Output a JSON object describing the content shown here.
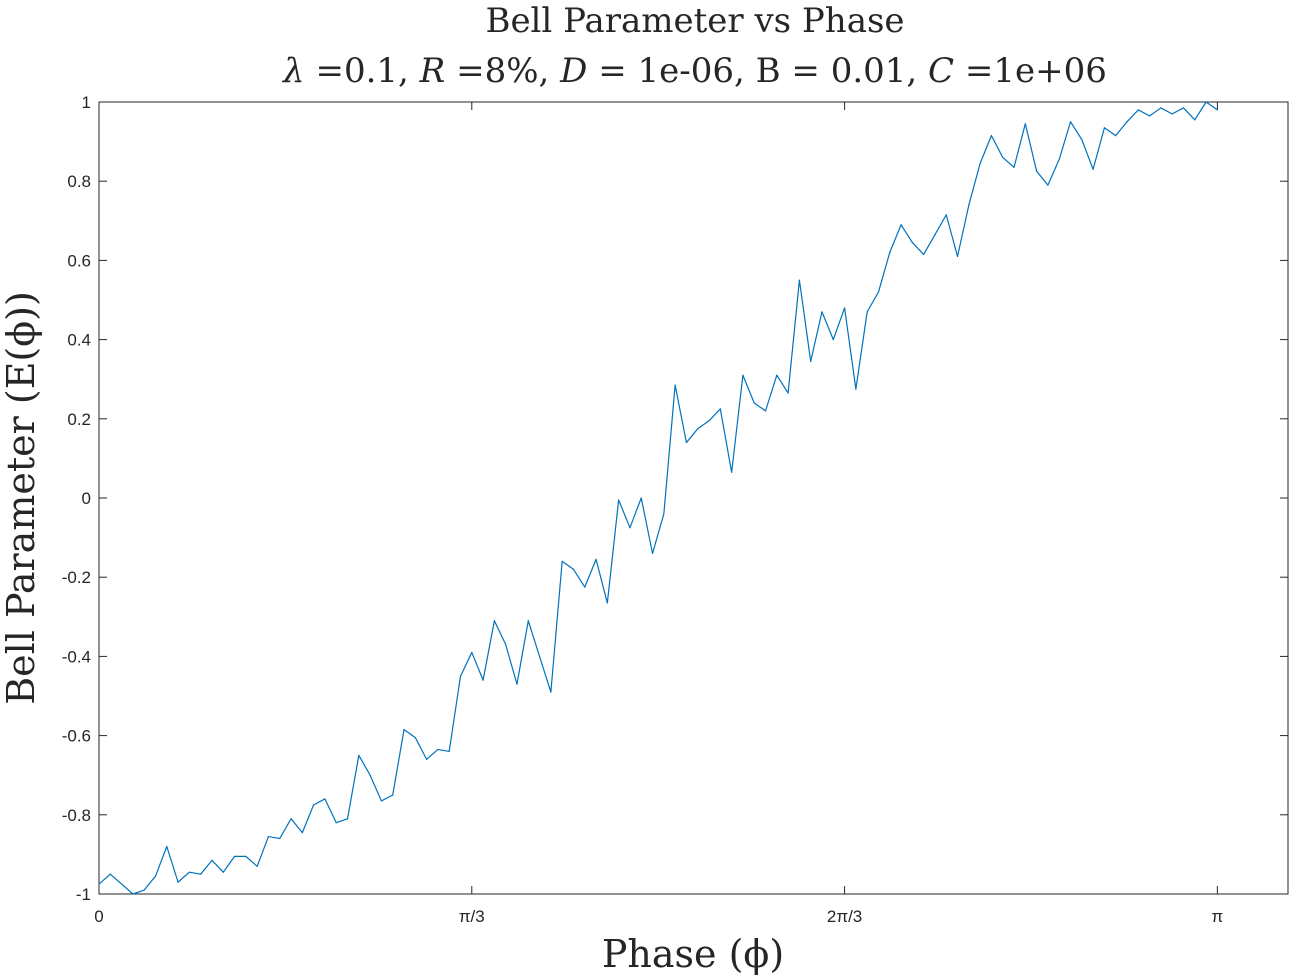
{
  "chart_data": {
    "type": "line",
    "title": "Bell Parameter vs Phase",
    "subtitle_parts": [
      {
        "text": "λ",
        "italic": true
      },
      {
        "text": " =0.1, ",
        "italic": false
      },
      {
        "text": "R",
        "italic": true
      },
      {
        "text": " =8%, ",
        "italic": false
      },
      {
        "text": "D",
        "italic": true
      },
      {
        "text": " = 1e-06, B = 0.01, ",
        "italic": false
      },
      {
        "text": "C",
        "italic": true
      },
      {
        "text": " =1e+06",
        "italic": false
      }
    ],
    "xlabel": "Phase (ϕ)",
    "ylabel": "Bell Parameter (E(ϕ))",
    "xlim": [
      0,
      3.34
    ],
    "ylim": [
      -1,
      1
    ],
    "xticks": [
      {
        "value": 0,
        "label": "0"
      },
      {
        "value": 1.0472,
        "label": "π/3"
      },
      {
        "value": 2.0944,
        "label": "2π/3"
      },
      {
        "value": 3.1416,
        "label": "π"
      }
    ],
    "yticks": [
      {
        "value": -1,
        "label": "-1"
      },
      {
        "value": -0.8,
        "label": "-0.8"
      },
      {
        "value": -0.6,
        "label": "-0.6"
      },
      {
        "value": -0.4,
        "label": "-0.4"
      },
      {
        "value": -0.2,
        "label": "-0.2"
      },
      {
        "value": 0,
        "label": "0"
      },
      {
        "value": 0.2,
        "label": "0.2"
      },
      {
        "value": 0.4,
        "label": "0.4"
      },
      {
        "value": 0.6,
        "label": "0.6"
      },
      {
        "value": 0.8,
        "label": "0.8"
      },
      {
        "value": 1,
        "label": "1"
      }
    ],
    "grid": false,
    "series": [
      {
        "color": "#0072BD",
        "x": [
          0,
          0.0317,
          0.0635,
          0.0952,
          0.1269,
          0.1587,
          0.1904,
          0.2221,
          0.2539,
          0.2856,
          0.3173,
          0.3491,
          0.3808,
          0.4125,
          0.4443,
          0.476,
          0.5077,
          0.5395,
          0.5712,
          0.6029,
          0.6347,
          0.6664,
          0.6981,
          0.7299,
          0.7616,
          0.7933,
          0.8251,
          0.8568,
          0.8885,
          0.9203,
          0.952,
          0.9837,
          1.0155,
          1.0472,
          1.0789,
          1.1107,
          1.1424,
          1.1741,
          1.2059,
          1.2376,
          1.2693,
          1.3011,
          1.3328,
          1.3645,
          1.3963,
          1.428,
          1.4597,
          1.4915,
          1.5232,
          1.5549,
          1.5867,
          1.6184,
          1.6501,
          1.6819,
          1.7136,
          1.7453,
          1.7771,
          1.8088,
          1.8405,
          1.8723,
          1.904,
          1.9357,
          1.9675,
          1.9992,
          2.0309,
          2.0627,
          2.0944,
          2.1261,
          2.1579,
          2.1896,
          2.2213,
          2.2531,
          2.2848,
          2.3165,
          2.3483,
          2.38,
          2.4117,
          2.4435,
          2.4752,
          2.5069,
          2.5387,
          2.5704,
          2.6021,
          2.6339,
          2.6656,
          2.6973,
          2.7291,
          2.7608,
          2.7925,
          2.8243,
          2.856,
          2.8877,
          2.9195,
          2.9512,
          2.9829,
          3.0147,
          3.0464,
          3.0781,
          3.1099,
          3.1416
        ],
        "y": [
          -0.975,
          -0.95,
          -0.975,
          -1.0,
          -0.99,
          -0.955,
          -0.88,
          -0.97,
          -0.945,
          -0.95,
          -0.915,
          -0.945,
          -0.905,
          -0.905,
          -0.93,
          -0.855,
          -0.86,
          -0.81,
          -0.845,
          -0.775,
          -0.76,
          -0.82,
          -0.81,
          -0.65,
          -0.7,
          -0.765,
          -0.75,
          -0.585,
          -0.605,
          -0.66,
          -0.635,
          -0.64,
          -0.45,
          -0.39,
          -0.46,
          -0.31,
          -0.37,
          -0.47,
          -0.31,
          -0.4,
          -0.49,
          -0.16,
          -0.18,
          -0.225,
          -0.155,
          -0.265,
          -0.005,
          -0.075,
          0.0,
          -0.14,
          -0.04,
          0.285,
          0.14,
          0.175,
          0.195,
          0.225,
          0.065,
          0.31,
          0.24,
          0.22,
          0.31,
          0.265,
          0.55,
          0.345,
          0.47,
          0.4,
          0.48,
          0.275,
          0.47,
          0.52,
          0.62,
          0.69,
          0.645,
          0.615,
          0.665,
          0.715,
          0.61,
          0.74,
          0.845,
          0.915,
          0.86,
          0.835,
          0.945,
          0.825,
          0.79,
          0.855,
          0.95,
          0.905,
          0.83,
          0.935,
          0.915,
          0.95,
          0.98,
          0.965,
          0.985,
          0.97,
          0.985,
          0.955,
          1.0,
          0.98
        ]
      }
    ]
  }
}
